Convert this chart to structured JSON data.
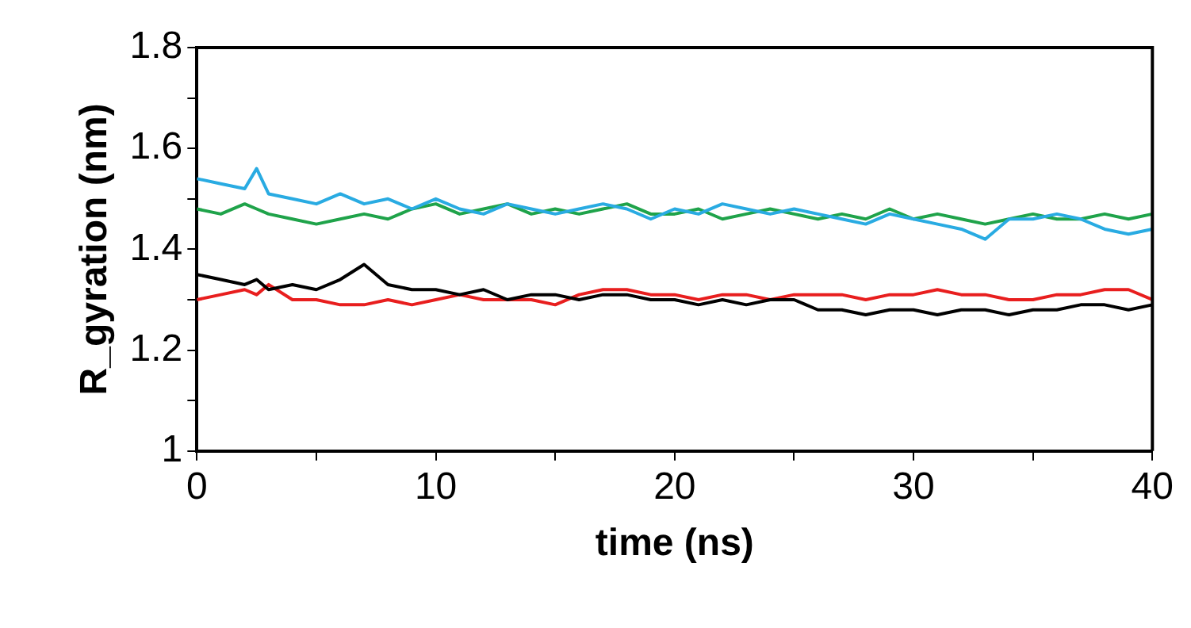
{
  "chart_data": {
    "type": "line",
    "xlabel": "time (ns)",
    "ylabel": "R_gyration (nm)",
    "xlim": [
      0,
      40
    ],
    "ylim": [
      1,
      1.8
    ],
    "xticks": [
      0,
      {
        "value": 5,
        "label": null
      },
      10,
      {
        "value": 15,
        "label": null
      },
      20,
      {
        "value": 25,
        "label": null
      },
      30,
      {
        "value": 35,
        "label": null
      },
      40
    ],
    "yticks": [
      1,
      {
        "value": 1.1,
        "label": null
      },
      1.2,
      {
        "value": 1.3,
        "label": null
      },
      1.4,
      {
        "value": 1.5,
        "label": null
      },
      1.6,
      {
        "value": 1.7,
        "label": null
      },
      1.8
    ],
    "grid": false,
    "legend": false,
    "marker": "none",
    "line_style": "solid",
    "x": [
      0,
      1,
      2,
      2.5,
      3,
      4,
      5,
      6,
      7,
      8,
      9,
      10,
      11,
      12,
      13,
      14,
      15,
      16,
      17,
      18,
      19,
      20,
      21,
      22,
      23,
      24,
      25,
      26,
      27,
      28,
      29,
      30,
      31,
      32,
      33,
      34,
      35,
      36,
      37,
      38,
      39,
      40
    ],
    "series": [
      {
        "color": "#29abe2",
        "values": [
          1.54,
          1.53,
          1.52,
          1.56,
          1.51,
          1.5,
          1.49,
          1.51,
          1.49,
          1.5,
          1.48,
          1.5,
          1.48,
          1.47,
          1.49,
          1.48,
          1.47,
          1.48,
          1.49,
          1.48,
          1.46,
          1.48,
          1.47,
          1.49,
          1.48,
          1.47,
          1.48,
          1.47,
          1.46,
          1.45,
          1.47,
          1.46,
          1.45,
          1.44,
          1.42,
          1.46,
          1.46,
          1.47,
          1.46,
          1.44,
          1.43,
          1.44
        ]
      },
      {
        "color": "#1fa34a",
        "values": [
          1.48,
          1.47,
          1.49,
          1.48,
          1.47,
          1.46,
          1.45,
          1.46,
          1.47,
          1.46,
          1.48,
          1.49,
          1.47,
          1.48,
          1.49,
          1.47,
          1.48,
          1.47,
          1.48,
          1.49,
          1.47,
          1.47,
          1.48,
          1.46,
          1.47,
          1.48,
          1.47,
          1.46,
          1.47,
          1.46,
          1.48,
          1.46,
          1.47,
          1.46,
          1.45,
          1.46,
          1.47,
          1.46,
          1.46,
          1.47,
          1.46,
          1.47
        ]
      },
      {
        "color": "#000000",
        "values": [
          1.35,
          1.34,
          1.33,
          1.34,
          1.32,
          1.33,
          1.32,
          1.34,
          1.37,
          1.33,
          1.32,
          1.32,
          1.31,
          1.32,
          1.3,
          1.31,
          1.31,
          1.3,
          1.31,
          1.31,
          1.3,
          1.3,
          1.29,
          1.3,
          1.29,
          1.3,
          1.3,
          1.28,
          1.28,
          1.27,
          1.28,
          1.28,
          1.27,
          1.28,
          1.28,
          1.27,
          1.28,
          1.28,
          1.29,
          1.29,
          1.28,
          1.29
        ]
      },
      {
        "color": "#e81e1e",
        "values": [
          1.3,
          1.31,
          1.32,
          1.31,
          1.33,
          1.3,
          1.3,
          1.29,
          1.29,
          1.3,
          1.29,
          1.3,
          1.31,
          1.3,
          1.3,
          1.3,
          1.29,
          1.31,
          1.32,
          1.32,
          1.31,
          1.31,
          1.3,
          1.31,
          1.31,
          1.3,
          1.31,
          1.31,
          1.31,
          1.3,
          1.31,
          1.31,
          1.32,
          1.31,
          1.31,
          1.3,
          1.3,
          1.31,
          1.31,
          1.32,
          1.32,
          1.3
        ]
      }
    ]
  }
}
